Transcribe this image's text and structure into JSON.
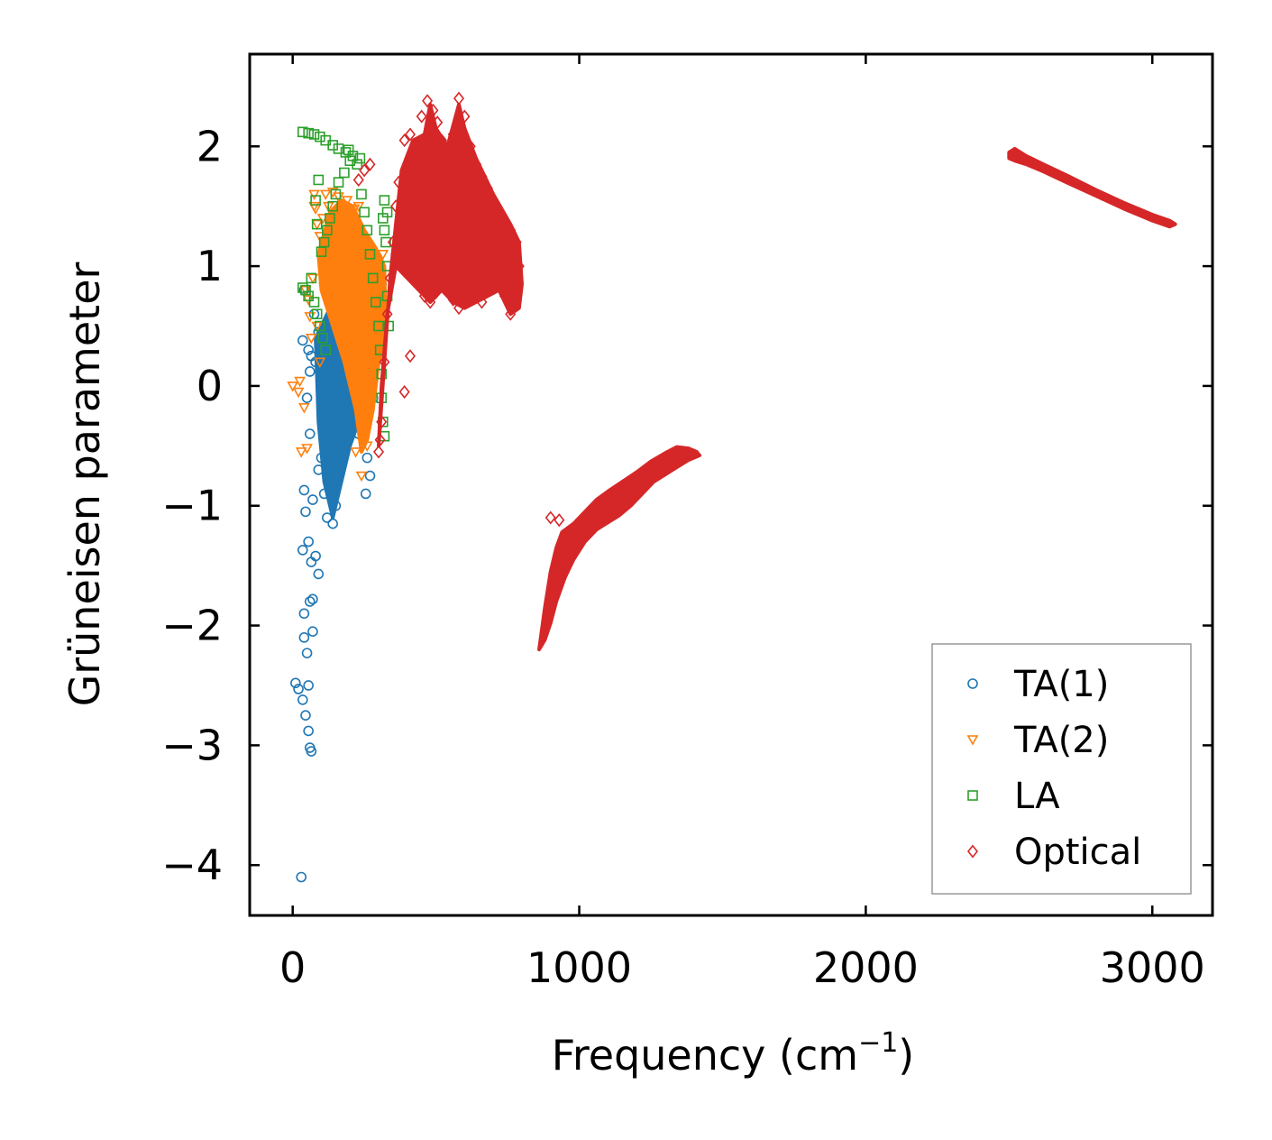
{
  "chart_data": {
    "type": "scatter",
    "title": "",
    "xlabel": "Frequency (cm",
    "xlabel_sup": "−1",
    "xlabel_close": ")",
    "ylabel": "Grüneisen parameter",
    "xlim": [
      -150,
      3210
    ],
    "ylim": [
      -4.42,
      2.77
    ],
    "xticks": [
      0,
      1000,
      2000,
      3000
    ],
    "xtick_labels": [
      "0",
      "1000",
      "2000",
      "3000"
    ],
    "yticks": [
      2,
      1,
      0,
      -1,
      -2,
      -3,
      -4
    ],
    "ytick_labels": [
      "2",
      "1",
      "0",
      "−1",
      "−2",
      "−3",
      "−4"
    ],
    "grid": false,
    "legend_position": "lower-right",
    "series": [
      {
        "name": "TA(1)",
        "marker": "circle",
        "color": "#1f77b4",
        "points": [
          [
            30,
            -4.1
          ],
          [
            10,
            -2.48
          ],
          [
            20,
            -2.53
          ],
          [
            35,
            -2.62
          ],
          [
            45,
            -2.75
          ],
          [
            55,
            -2.88
          ],
          [
            60,
            -3.02
          ],
          [
            65,
            -3.05
          ],
          [
            55,
            -2.5
          ],
          [
            40,
            -2.1
          ],
          [
            50,
            -2.23
          ],
          [
            70,
            -2.05
          ],
          [
            60,
            -1.8
          ],
          [
            70,
            -1.78
          ],
          [
            40,
            -1.9
          ],
          [
            35,
            -1.37
          ],
          [
            55,
            -1.3
          ],
          [
            65,
            -1.47
          ],
          [
            80,
            -1.42
          ],
          [
            90,
            -1.57
          ],
          [
            45,
            -1.05
          ],
          [
            40,
            -0.87
          ],
          [
            70,
            -0.95
          ],
          [
            60,
            -0.4
          ],
          [
            50,
            -0.1
          ],
          [
            35,
            0.38
          ],
          [
            55,
            0.3
          ],
          [
            65,
            0.25
          ],
          [
            40,
            0.8
          ],
          [
            60,
            0.12
          ],
          [
            75,
            0.6
          ],
          [
            90,
            0.45
          ],
          [
            80,
            0.2
          ],
          [
            100,
            0.0
          ],
          [
            120,
            -0.3
          ],
          [
            130,
            -0.6
          ],
          [
            140,
            -0.85
          ],
          [
            150,
            -1.0
          ],
          [
            140,
            -1.15
          ],
          [
            120,
            -1.1
          ],
          [
            160,
            -0.5
          ],
          [
            170,
            -0.2
          ],
          [
            180,
            0.1
          ],
          [
            190,
            0.3
          ],
          [
            200,
            0.5
          ],
          [
            210,
            0.6
          ],
          [
            220,
            0.4
          ],
          [
            230,
            0.2
          ],
          [
            240,
            0.0
          ],
          [
            250,
            -0.3
          ],
          [
            260,
            -0.6
          ],
          [
            255,
            -0.9
          ],
          [
            270,
            -0.75
          ],
          [
            280,
            -0.1
          ],
          [
            290,
            0.3
          ],
          [
            300,
            0.6
          ],
          [
            310,
            0.85
          ],
          [
            150,
            0.75
          ],
          [
            170,
            0.78
          ],
          [
            110,
            0.5
          ],
          [
            130,
            0.35
          ],
          [
            160,
            0.2
          ],
          [
            200,
            0.05
          ],
          [
            230,
            -0.4
          ],
          [
            210,
            -0.2
          ],
          [
            100,
            -0.6
          ],
          [
            110,
            -0.9
          ],
          [
            90,
            -0.7
          ]
        ],
        "bands": [
          {
            "x": [
              80,
              150,
              200,
              230,
              260,
              290,
              310,
              300,
              270,
              250,
              230,
              200,
              170,
              140,
              110,
              90
            ],
            "y": [
              0.4,
              0.75,
              0.75,
              0.7,
              0.65,
              0.75,
              0.8,
              0.3,
              0.1,
              -0.5,
              -0.3,
              -0.5,
              -0.8,
              -1.1,
              -0.8,
              -0.3
            ]
          }
        ]
      },
      {
        "name": "TA(2)",
        "marker": "triangle-down",
        "color": "#ff7f0e",
        "points": [
          [
            0,
            0.0
          ],
          [
            20,
            -0.05
          ],
          [
            25,
            0.04
          ],
          [
            30,
            -0.55
          ],
          [
            40,
            -0.18
          ],
          [
            45,
            0.8
          ],
          [
            55,
            0.72
          ],
          [
            60,
            0.58
          ],
          [
            65,
            0.4
          ],
          [
            70,
            0.9
          ],
          [
            75,
            1.5
          ],
          [
            80,
            1.48
          ],
          [
            85,
            1.35
          ],
          [
            95,
            1.25
          ],
          [
            105,
            1.4
          ],
          [
            115,
            1.6
          ],
          [
            125,
            1.5
          ],
          [
            140,
            1.62
          ],
          [
            160,
            1.58
          ],
          [
            190,
            1.55
          ],
          [
            215,
            1.48
          ],
          [
            230,
            1.5
          ],
          [
            50,
            -0.52
          ],
          [
            85,
            0.5
          ],
          [
            95,
            0.2
          ],
          [
            110,
            0.82
          ],
          [
            75,
            1.6
          ],
          [
            220,
            -0.55
          ],
          [
            240,
            -0.75
          ],
          [
            260,
            -0.5
          ],
          [
            245,
            -0.2
          ],
          [
            270,
            0.2
          ],
          [
            280,
            0.6
          ],
          [
            300,
            0.9
          ],
          [
            315,
            1.1
          ],
          [
            200,
            1.2
          ]
        ],
        "bands": [
          {
            "x": [
              90,
              130,
              170,
              210,
              250,
              290,
              320,
              325,
              300,
              280,
              260,
              240,
              220,
              180,
              140,
              100
            ],
            "y": [
              1.1,
              1.45,
              1.55,
              1.5,
              1.3,
              1.15,
              1.0,
              0.4,
              0.2,
              -0.2,
              -0.45,
              -0.55,
              -0.2,
              0.2,
              0.5,
              0.8
            ]
          }
        ]
      },
      {
        "name": "LA",
        "marker": "square",
        "color": "#2ca02c",
        "points": [
          [
            35,
            2.12
          ],
          [
            55,
            2.11
          ],
          [
            75,
            2.1
          ],
          [
            95,
            2.08
          ],
          [
            115,
            2.05
          ],
          [
            140,
            2.01
          ],
          [
            160,
            1.98
          ],
          [
            185,
            1.95
          ],
          [
            210,
            1.92
          ],
          [
            235,
            1.9
          ],
          [
            200,
            1.88
          ],
          [
            180,
            1.78
          ],
          [
            160,
            1.7
          ],
          [
            150,
            1.6
          ],
          [
            140,
            1.5
          ],
          [
            130,
            1.4
          ],
          [
            120,
            1.3
          ],
          [
            110,
            1.2
          ],
          [
            100,
            1.12
          ],
          [
            85,
            1.35
          ],
          [
            80,
            1.55
          ],
          [
            90,
            1.72
          ],
          [
            195,
            1.97
          ],
          [
            225,
            1.85
          ],
          [
            240,
            1.6
          ],
          [
            250,
            1.45
          ],
          [
            260,
            1.3
          ],
          [
            270,
            1.1
          ],
          [
            280,
            0.9
          ],
          [
            290,
            0.7
          ],
          [
            300,
            0.5
          ],
          [
            305,
            0.3
          ],
          [
            310,
            0.1
          ],
          [
            310,
            -0.1
          ],
          [
            315,
            -0.3
          ],
          [
            320,
            -0.42
          ],
          [
            320,
            1.55
          ],
          [
            315,
            1.4
          ],
          [
            325,
            1.2
          ],
          [
            330,
            1.0
          ],
          [
            330,
            0.75
          ],
          [
            335,
            0.5
          ],
          [
            330,
            1.45
          ],
          [
            320,
            1.3
          ],
          [
            35,
            0.82
          ],
          [
            45,
            0.8
          ],
          [
            55,
            0.75
          ],
          [
            65,
            0.9
          ],
          [
            75,
            0.7
          ],
          [
            85,
            0.6
          ],
          [
            95,
            0.5
          ],
          [
            105,
            0.4
          ],
          [
            115,
            0.3
          ]
        ],
        "bands": []
      },
      {
        "name": "Optical",
        "marker": "diamond",
        "color": "#d62728",
        "points": [
          [
            300,
            -0.55
          ],
          [
            305,
            -0.45
          ],
          [
            310,
            -0.3
          ],
          [
            320,
            0.2
          ],
          [
            330,
            0.6
          ],
          [
            340,
            0.9
          ],
          [
            350,
            1.2
          ],
          [
            360,
            1.5
          ],
          [
            370,
            1.7
          ],
          [
            390,
            2.05
          ],
          [
            410,
            2.1
          ],
          [
            430,
            1.95
          ],
          [
            450,
            2.25
          ],
          [
            470,
            2.38
          ],
          [
            490,
            2.3
          ],
          [
            505,
            2.2
          ],
          [
            520,
            2.05
          ],
          [
            540,
            1.95
          ],
          [
            560,
            2.1
          ],
          [
            580,
            2.4
          ],
          [
            600,
            2.25
          ],
          [
            620,
            2.0
          ],
          [
            640,
            1.85
          ],
          [
            660,
            1.75
          ],
          [
            680,
            1.65
          ],
          [
            700,
            1.55
          ],
          [
            720,
            1.45
          ],
          [
            740,
            1.35
          ],
          [
            760,
            1.3
          ],
          [
            780,
            1.2
          ],
          [
            790,
            1.0
          ],
          [
            780,
            0.8
          ],
          [
            760,
            0.6
          ],
          [
            740,
            0.75
          ],
          [
            720,
            0.85
          ],
          [
            700,
            0.9
          ],
          [
            680,
            0.8
          ],
          [
            660,
            0.7
          ],
          [
            640,
            0.8
          ],
          [
            620,
            0.85
          ],
          [
            600,
            0.7
          ],
          [
            580,
            0.65
          ],
          [
            560,
            0.72
          ],
          [
            540,
            0.8
          ],
          [
            520,
            0.85
          ],
          [
            500,
            0.78
          ],
          [
            480,
            0.7
          ],
          [
            460,
            0.75
          ],
          [
            440,
            0.85
          ],
          [
            420,
            0.9
          ],
          [
            400,
            0.95
          ],
          [
            380,
            1.0
          ],
          [
            360,
            1.1
          ],
          [
            390,
            -0.05
          ],
          [
            410,
            0.25
          ],
          [
            230,
            1.72
          ],
          [
            250,
            1.8
          ],
          [
            270,
            1.85
          ],
          [
            900,
            -1.1
          ],
          [
            930,
            -1.12
          ]
        ],
        "bands": [
          {
            "x": [
              340,
              380,
              420,
              460,
              480,
              500,
              540,
              580,
              600,
              640,
              700,
              760,
              790,
              800,
              790,
              760,
              720,
              680,
              640,
              600,
              560,
              520,
              480,
              440,
              400,
              360,
              330,
              310,
              300,
              320
            ],
            "y": [
              0.9,
              1.8,
              2.05,
              2.1,
              2.35,
              2.15,
              2.0,
              2.35,
              2.15,
              1.9,
              1.6,
              1.35,
              1.2,
              0.85,
              0.65,
              0.6,
              0.8,
              0.75,
              0.7,
              0.65,
              0.7,
              0.8,
              0.7,
              0.8,
              0.9,
              1.0,
              0.6,
              0.0,
              -0.5,
              0.2
            ]
          },
          {
            "x": [
              860,
              880,
              900,
              920,
              940,
              980,
              1020,
              1060,
              1100,
              1150,
              1200,
              1250,
              1300,
              1340,
              1380,
              1410,
              1420,
              1380,
              1340,
              1300,
              1260,
              1220,
              1180,
              1140,
              1100,
              1060,
              1020,
              980,
              950,
              920,
              900,
              880,
              860
            ],
            "y": [
              -2.2,
              -1.85,
              -1.55,
              -1.35,
              -1.22,
              -1.15,
              -1.05,
              -0.95,
              -0.88,
              -0.8,
              -0.72,
              -0.63,
              -0.56,
              -0.51,
              -0.52,
              -0.55,
              -0.58,
              -0.62,
              -0.68,
              -0.74,
              -0.8,
              -0.9,
              -1.0,
              -1.08,
              -1.14,
              -1.2,
              -1.3,
              -1.45,
              -1.6,
              -1.8,
              -1.98,
              -2.12,
              -2.2
            ]
          },
          {
            "x": [
              2500,
              2520,
              2560,
              2620,
              2700,
              2800,
              2900,
              3000,
              3060,
              3080,
              3060,
              3000,
              2900,
              2800,
              2700,
              2620,
              2560,
              2520,
              2500
            ],
            "y": [
              1.95,
              1.98,
              1.92,
              1.85,
              1.76,
              1.64,
              1.53,
              1.43,
              1.38,
              1.35,
              1.33,
              1.38,
              1.48,
              1.59,
              1.7,
              1.79,
              1.85,
              1.88,
              1.9
            ]
          }
        ]
      }
    ]
  }
}
